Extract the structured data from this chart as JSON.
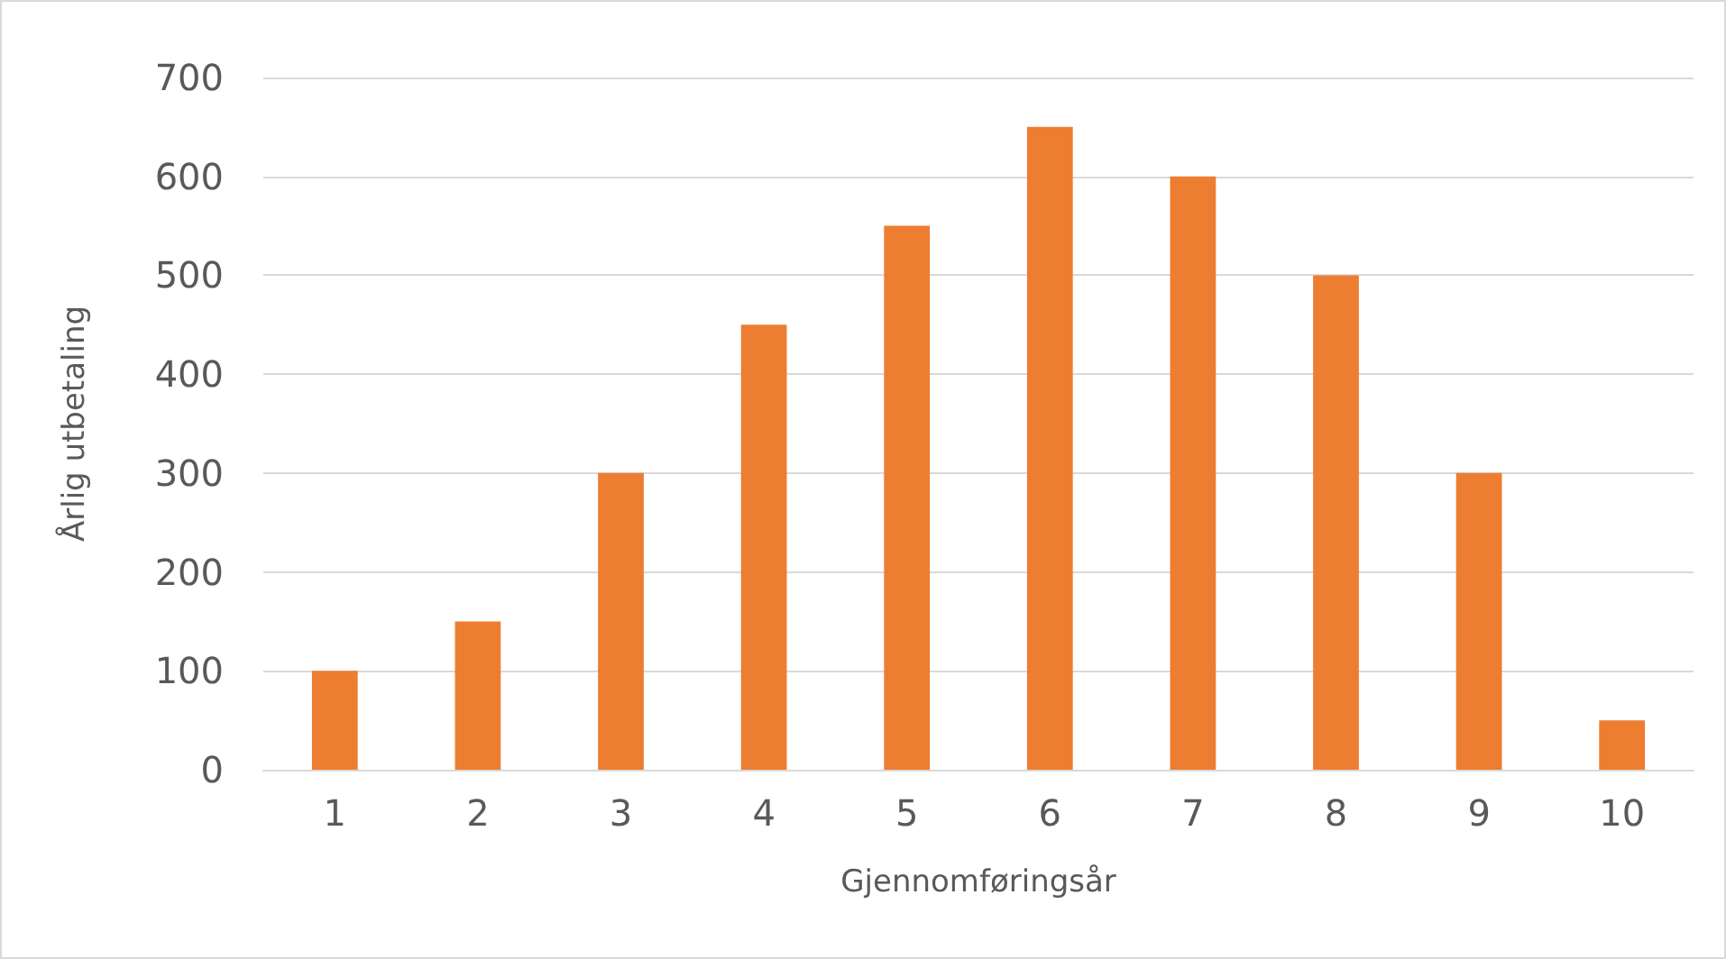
{
  "chart_data": {
    "type": "bar",
    "xlabel": "Gjennomføringsår",
    "ylabel": "Årlig utbetaling",
    "categories": [
      "1",
      "2",
      "3",
      "4",
      "5",
      "6",
      "7",
      "8",
      "9",
      "10"
    ],
    "values": [
      100,
      150,
      300,
      450,
      550,
      650,
      600,
      500,
      300,
      50
    ],
    "color": "#ed7d31",
    "ylim": [
      0,
      700
    ],
    "yticks": [
      0,
      100,
      200,
      300,
      400,
      500,
      600,
      700
    ],
    "grid": "y"
  }
}
